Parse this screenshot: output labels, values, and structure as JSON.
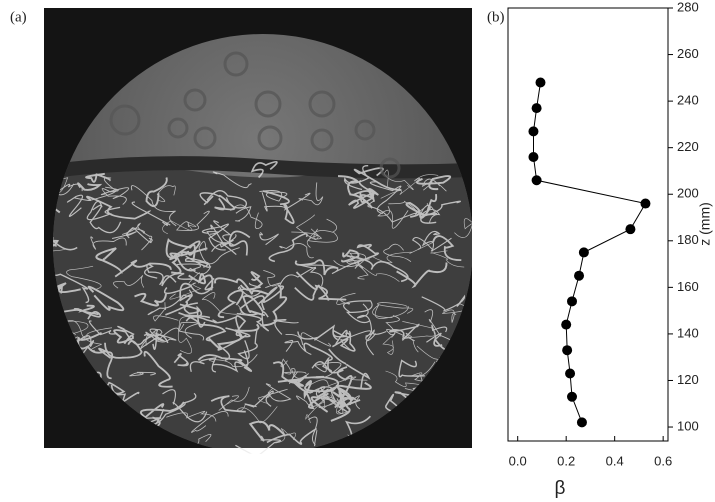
{
  "panel_a": {
    "label": "(a)"
  },
  "chart_data": {
    "type": "line",
    "label": "(b)",
    "x_label": "β",
    "y_label": "z (mm)",
    "color": "#000000",
    "x": [
      0.094,
      0.078,
      0.065,
      0.065,
      0.078,
      0.527,
      0.465,
      0.273,
      0.253,
      0.224,
      0.2,
      0.204,
      0.216,
      0.224,
      0.265
    ],
    "values": [
      248,
      237,
      227,
      216,
      206,
      196,
      185,
      175,
      165,
      154,
      144,
      133,
      123,
      113,
      102
    ],
    "xlim": [
      -0.04,
      0.62
    ],
    "xticks": [
      {
        "value": 0,
        "label": "0.0"
      },
      0.2,
      0.4,
      0.6
    ],
    "ylim": [
      94,
      280
    ],
    "yticks": [
      100,
      120,
      140,
      160,
      180,
      200,
      220,
      240,
      260,
      280
    ]
  }
}
